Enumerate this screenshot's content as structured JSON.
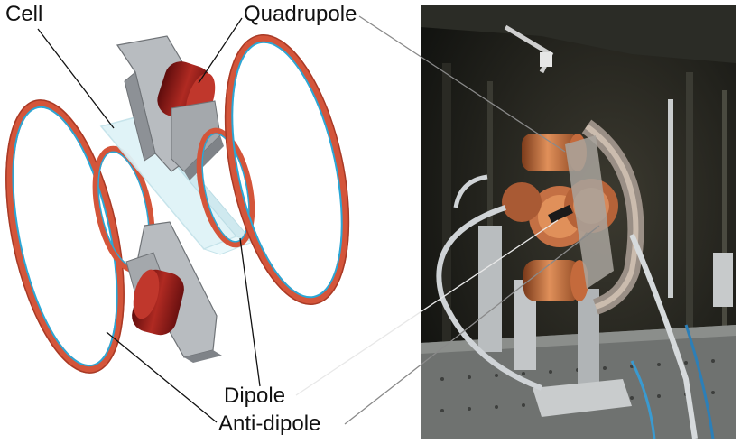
{
  "labels": {
    "cell": "Cell",
    "quadrupole": "Quadrupole",
    "dipole": "Dipole",
    "anti_dipole": "Anti-dipole"
  },
  "colors": {
    "coil_copper": "#d4553a",
    "coil_stripe": "#2aa7d6",
    "magnet_red": "#8e1a1a",
    "bracket_gray": "#b8bcc0",
    "cell_glass": "#dff3f7",
    "photo_bg": "#1b1c18",
    "leader_line": "#7a7a7a"
  }
}
